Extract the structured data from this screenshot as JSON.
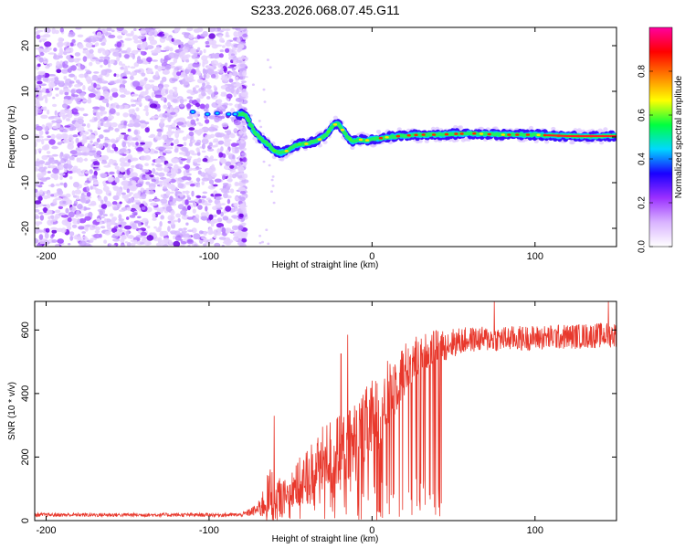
{
  "title": "S233.2026.068.07.45.G11",
  "chart_data": [
    {
      "type": "heatmap",
      "name": "spectrogram",
      "xlabel": "Height of straight line (km)",
      "ylabel": "Frequency (Hz)",
      "xlim": [
        -207,
        150
      ],
      "ylim": [
        -24,
        24
      ],
      "xticks": [
        -200,
        -100,
        0,
        100
      ],
      "yticks": [
        -20,
        -10,
        0,
        10,
        20
      ],
      "noise_region_x": [
        -207,
        -78
      ],
      "ridge": {
        "x": [
          -110,
          -90,
          -82,
          -78,
          -75,
          -72,
          -68,
          -64,
          -60,
          -56,
          -52,
          -48,
          -44,
          -40,
          -36,
          -32,
          -28,
          -24,
          -21,
          -18,
          -15,
          -12,
          -8,
          -4,
          0,
          10,
          20,
          30,
          40,
          60,
          80,
          100,
          120,
          150
        ],
        "y": [
          5.5,
          5,
          5,
          5,
          3,
          1,
          -0.5,
          -1.5,
          -3,
          -3.5,
          -3,
          -2,
          -1.5,
          -1.5,
          -1,
          -0.5,
          0.5,
          2.5,
          3,
          1.5,
          0,
          -1,
          -0.5,
          -0.8,
          -0.5,
          0,
          0.3,
          0.5,
          0.5,
          0.8,
          0.5,
          0.5,
          0.2,
          0.2
        ]
      },
      "colorbar": {
        "label": "Normalized spectral amplitude",
        "range": [
          0,
          1
        ],
        "ticks": [
          "0.0",
          "0.2",
          "0.4",
          "0.6",
          "0.8"
        ],
        "colors": [
          "#ffffff",
          "#d9b3ff",
          "#9b30ff",
          "#1a00ff",
          "#00d8ff",
          "#00ff40",
          "#ffff00",
          "#ff8000",
          "#ff0000",
          "#ff00a0"
        ]
      }
    },
    {
      "type": "line",
      "name": "snr",
      "xlabel": "Height of straight line (km)",
      "ylabel": "SNR (10 * v/v)",
      "xlim": [
        -207,
        150
      ],
      "ylim": [
        0,
        690
      ],
      "xticks": [
        -200,
        -100,
        0,
        100
      ],
      "yticks": [
        0,
        200,
        400,
        600
      ],
      "color": "#e8382c",
      "series": [
        {
          "name": "SNR",
          "envelope": [
            {
              "x": -207,
              "base": 18,
              "spread": 12
            },
            {
              "x": -80,
              "base": 18,
              "spread": 12
            },
            {
              "x": -70,
              "base": 35,
              "spread": 40
            },
            {
              "x": -62,
              "base": 80,
              "spread": 200
            },
            {
              "x": -55,
              "base": 70,
              "spread": 100
            },
            {
              "x": -45,
              "base": 110,
              "spread": 170
            },
            {
              "x": -35,
              "base": 170,
              "spread": 200
            },
            {
              "x": -25,
              "base": 210,
              "spread": 230
            },
            {
              "x": -15,
              "base": 220,
              "spread": 250
            },
            {
              "x": -5,
              "base": 280,
              "spread": 260
            },
            {
              "x": 5,
              "base": 350,
              "spread": 260
            },
            {
              "x": 15,
              "base": 440,
              "spread": 200
            },
            {
              "x": 25,
              "base": 510,
              "spread": 140
            },
            {
              "x": 35,
              "base": 540,
              "spread": 110
            },
            {
              "x": 45,
              "base": 555,
              "spread": 100
            },
            {
              "x": 60,
              "base": 570,
              "spread": 80
            },
            {
              "x": 100,
              "base": 575,
              "spread": 80
            },
            {
              "x": 150,
              "base": 585,
              "spread": 80
            }
          ],
          "drops": {
            "x": [
              -60,
              45
            ],
            "min": 120
          },
          "spikes": [
            {
              "x": -60,
              "y": 330
            },
            {
              "x": -19,
              "y": 525
            },
            {
              "x": -15,
              "y": 585
            },
            {
              "x": 75,
              "y": 690
            },
            {
              "x": 145,
              "y": 690
            }
          ]
        }
      ]
    }
  ]
}
